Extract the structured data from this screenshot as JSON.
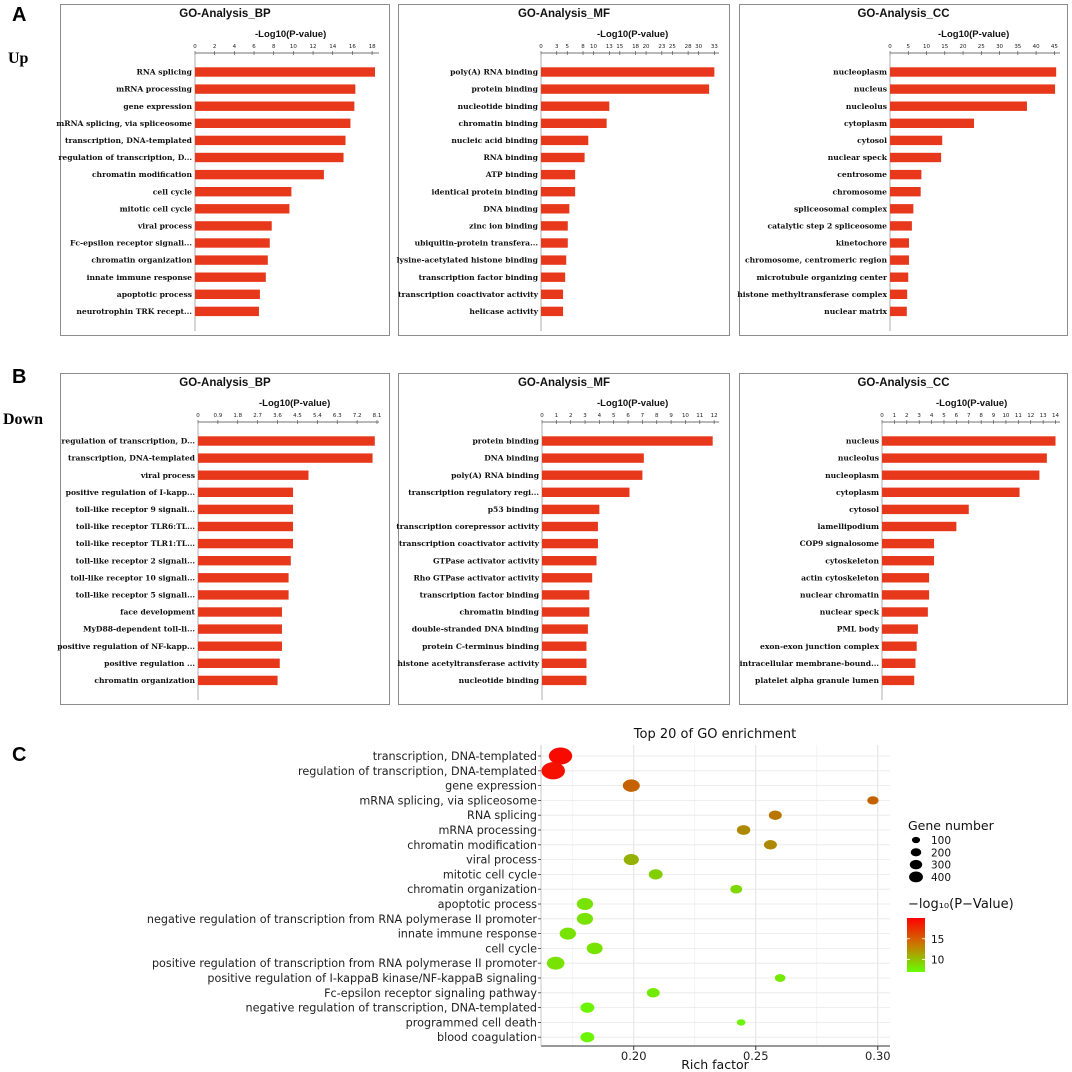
{
  "labels": {
    "A": "A",
    "B": "B",
    "C": "C",
    "up": "Up",
    "down": "Down"
  },
  "panel_axis_title": "-Log10(P-value)",
  "chart_data": [
    {
      "id": "up-bp",
      "type": "bar",
      "orientation": "horizontal",
      "title": "GO-Analysis_BP",
      "xlabel": "-Log10(P-value)",
      "xlim": [
        0,
        18.5
      ],
      "ticks": [
        0,
        2,
        4,
        6,
        8,
        10,
        12,
        14,
        16,
        18
      ],
      "categories": [
        "RNA splicing",
        "mRNA processing",
        "gene expression",
        "mRNA splicing, via spliceosome",
        "transcription, DNA-templated",
        "regulation of transcription, D...",
        "chromatin modification",
        "cell cycle",
        "mitotic cell cycle",
        "viral process",
        "Fc-epsilon receptor signali...",
        "chromatin organization",
        "innate immune response",
        "apoptotic process",
        "neurotrophin TRK recept..."
      ],
      "values": [
        18.3,
        16.3,
        16.2,
        15.8,
        15.3,
        15.1,
        13.1,
        9.8,
        9.6,
        7.8,
        7.6,
        7.4,
        7.2,
        6.6,
        6.5
      ]
    },
    {
      "id": "up-mf",
      "type": "bar",
      "orientation": "horizontal",
      "title": "GO-Analysis_MF",
      "xlabel": "-Log10(P-value)",
      "xlim": [
        0,
        33.5
      ],
      "ticks": [
        0,
        3,
        5,
        8,
        10,
        13,
        15,
        18,
        20,
        23,
        25,
        28,
        30,
        33
      ],
      "categories": [
        "poly(A) RNA binding",
        "protein binding",
        "nucleotide binding",
        "chromatin binding",
        "nucleic acid binding",
        "RNA binding",
        "ATP binding",
        "identical protein binding",
        "DNA binding",
        "zinc ion binding",
        "ubiquitin-protein transfera...",
        "lysine-acetylated histone binding",
        "transcription factor binding",
        "transcription coactivator activity",
        "helicase activity"
      ],
      "values": [
        33.0,
        32.0,
        13.0,
        12.5,
        9.0,
        8.3,
        6.5,
        6.5,
        5.4,
        5.1,
        5.1,
        4.8,
        4.6,
        4.2,
        4.2
      ]
    },
    {
      "id": "up-cc",
      "type": "bar",
      "orientation": "horizontal",
      "title": "GO-Analysis_CC",
      "xlabel": "-Log10(P-value)",
      "xlim": [
        0,
        46
      ],
      "ticks": [
        0,
        5,
        10,
        15,
        20,
        25,
        30,
        35,
        40,
        45
      ],
      "categories": [
        "nucleoplasm",
        "nucleus",
        "nucleolus",
        "cytoplasm",
        "cytosol",
        "nuclear speck",
        "centrosome",
        "chromosome",
        "spliceosomal complex",
        "catalytic step 2 spliceosome",
        "kinetochore",
        "chromosome, centromeric region",
        "microtubule organizing center",
        "histone methyltransferase complex",
        "nuclear matrix"
      ],
      "values": [
        45.5,
        45.2,
        37.5,
        23.0,
        14.3,
        14.0,
        8.6,
        8.4,
        6.4,
        6.0,
        5.2,
        5.2,
        5.0,
        4.7,
        4.6
      ]
    },
    {
      "id": "down-bp",
      "type": "bar",
      "orientation": "horizontal",
      "title": "GO-Analysis_BP",
      "xlabel": "-Log10(P-value)",
      "xlim": [
        0,
        8.1
      ],
      "ticks": [
        0,
        0.9,
        1.8,
        2.7,
        3.6,
        4.5,
        5.4,
        6.3,
        7.2,
        8.1
      ],
      "categories": [
        "regulation of transcription, D...",
        "transcription, DNA-templated",
        "viral process",
        "positive regulation of I-kapp...",
        "toll-like receptor 9 signali...",
        "toll-like receptor TLR6:TL...",
        "toll-like receptor TLR1:TL...",
        "toll-like receptor 2 signali...",
        "toll-like receptor 10 signali...",
        "toll-like receptor 5 signali...",
        "face development",
        "MyD88-dependent toll-li...",
        "positive regulation of NF-kapp...",
        "positive regulation ...",
        "chromatin organization"
      ],
      "values": [
        8.0,
        7.9,
        5.0,
        4.3,
        4.3,
        4.3,
        4.3,
        4.2,
        4.1,
        4.1,
        3.8,
        3.8,
        3.8,
        3.7,
        3.6
      ]
    },
    {
      "id": "down-mf",
      "type": "bar",
      "orientation": "horizontal",
      "title": "GO-Analysis_MF",
      "xlabel": "-Log10(P-value)",
      "xlim": [
        0,
        12.2
      ],
      "ticks": [
        0,
        1,
        2,
        3,
        4,
        5,
        6,
        7,
        8,
        9,
        10,
        11,
        12
      ],
      "categories": [
        "protein binding",
        "DNA binding",
        "poly(A) RNA binding",
        "transcription regulatory regi...",
        "p53 binding",
        "transcription corepressor activity",
        "transcription coactivator activity",
        "GTPase activator activity",
        "Rho GTPase activator activity",
        "transcription factor binding",
        "chromatin binding",
        "double-stranded DNA binding",
        "protein C-terminus binding",
        "histone acetyltransferase activity",
        "nucleotide binding"
      ],
      "values": [
        11.9,
        7.1,
        7.0,
        6.1,
        4.0,
        3.9,
        3.9,
        3.8,
        3.5,
        3.3,
        3.3,
        3.2,
        3.1,
        3.1,
        3.1
      ]
    },
    {
      "id": "down-cc",
      "type": "bar",
      "orientation": "horizontal",
      "title": "GO-Analysis_CC",
      "xlabel": "-Log10(P-value)",
      "xlim": [
        0,
        14.2
      ],
      "ticks": [
        0,
        1,
        2,
        3,
        4,
        5,
        6,
        7,
        8,
        9,
        10,
        11,
        12,
        13,
        14
      ],
      "categories": [
        "nucleus",
        "nucleolus",
        "nucleoplasm",
        "cytoplasm",
        "cytosol",
        "lamellipodium",
        "COP9 signalosome",
        "cytoskeleton",
        "actin cytoskeleton",
        "nuclear chromatin",
        "nuclear speck",
        "PML body",
        "exon-exon junction complex",
        "intracellular membrane-bound...",
        "platelet alpha granule lumen"
      ],
      "values": [
        14.0,
        13.3,
        12.7,
        11.1,
        7.0,
        6.0,
        4.2,
        4.2,
        3.8,
        3.8,
        3.7,
        2.9,
        2.8,
        2.7,
        2.6
      ]
    },
    {
      "id": "dot",
      "type": "scatter",
      "title": "Top 20 of GO enrichment",
      "xlabel": "Rich factor",
      "xlim": [
        0.162,
        0.305
      ],
      "xticks": [
        "0.20",
        "0.25",
        "0.30"
      ],
      "categories": [
        "transcription, DNA-templated",
        "regulation of transcription, DNA-templated",
        "gene expression",
        "mRNA splicing, via spliceosome",
        "RNA splicing",
        "mRNA processing",
        "chromatin modification",
        "viral process",
        "mitotic cell cycle",
        "chromatin organization",
        "apoptotic process",
        "negative regulation of transcription from RNA polymerase II promoter",
        "innate immune response",
        "cell cycle",
        "positive regulation of transcription from RNA polymerase II promoter",
        "positive regulation of I-kappaB kinase/NF-kappaB signaling",
        "Fc-epsilon receptor signaling pathway",
        "negative regulation of transcription, DNA-templated",
        "programmed cell death",
        "blood coagulation"
      ],
      "rich_factor": [
        0.17,
        0.167,
        0.199,
        0.298,
        0.258,
        0.245,
        0.256,
        0.199,
        0.209,
        0.242,
        0.18,
        0.18,
        0.173,
        0.184,
        0.168,
        0.26,
        0.208,
        0.181,
        0.244,
        0.181
      ],
      "gene_number": [
        420,
        430,
        190,
        60,
        90,
        100,
        90,
        140,
        110,
        70,
        170,
        170,
        170,
        160,
        210,
        50,
        90,
        110,
        25,
        110
      ],
      "neg_log10_p": [
        19.5,
        19.2,
        15.0,
        15.0,
        14.0,
        13.0,
        13.0,
        11.0,
        9.5,
        9.0,
        8.5,
        8.5,
        8.5,
        8.5,
        8.5,
        8.0,
        8.0,
        7.5,
        7.5,
        7.5
      ],
      "size_legend": {
        "title": "Gene number",
        "values": [
          100,
          200,
          300,
          400
        ]
      },
      "color_legend": {
        "title": "−log₁₀(P−Value)",
        "ticks": [
          10,
          15
        ],
        "range": [
          7,
          20
        ]
      }
    }
  ],
  "colors": {
    "bar": "#e8381c",
    "bar_dark": "#c92b12",
    "grad_high": "#ff0000",
    "grad_low": "#66ff00"
  }
}
